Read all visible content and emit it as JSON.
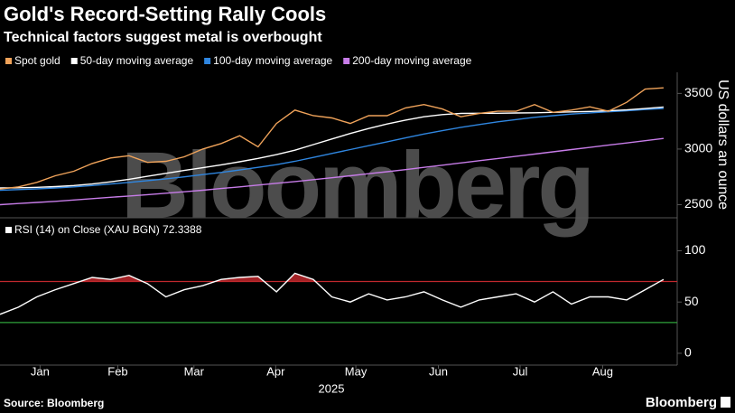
{
  "chart_data": [
    {
      "type": "line",
      "title": "Gold's Record-Setting Rally Cools",
      "subtitle": "Technical factors suggest metal is overbought",
      "watermark": "Bloomberg",
      "y_axis_label": "US dollars an ounce",
      "x": [
        0,
        0.23,
        0.46,
        0.69,
        0.92,
        1.15,
        1.38,
        1.61,
        1.84,
        2.07,
        2.3,
        2.53,
        2.76,
        2.99,
        3.22,
        3.45,
        3.68,
        3.91,
        4.14,
        4.37,
        4.6,
        4.83,
        5.06,
        5.29,
        5.52,
        5.75,
        5.98,
        6.21,
        6.44,
        6.67,
        6.9,
        7.13,
        7.36,
        7.59,
        7.82,
        8.05,
        8.28
      ],
      "xlim": [
        0,
        8.45
      ],
      "ylim": [
        2390,
        3690
      ],
      "yticks": [
        2500,
        3000,
        3500
      ],
      "series": [
        {
          "name": "Spot gold",
          "color": "#f0a35a",
          "values": [
            2640,
            2660,
            2700,
            2760,
            2800,
            2870,
            2920,
            2940,
            2880,
            2890,
            2930,
            3000,
            3050,
            3120,
            3020,
            3230,
            3350,
            3300,
            3280,
            3230,
            3300,
            3300,
            3370,
            3400,
            3360,
            3290,
            3320,
            3340,
            3340,
            3400,
            3330,
            3350,
            3380,
            3340,
            3420,
            3540,
            3550
          ]
        },
        {
          "name": "50-day moving average",
          "color": "#ffffff",
          "values": [
            2650,
            2652,
            2656,
            2662,
            2672,
            2686,
            2705,
            2728,
            2755,
            2782,
            2808,
            2832,
            2858,
            2886,
            2916,
            2950,
            2990,
            3040,
            3090,
            3140,
            3185,
            3225,
            3260,
            3290,
            3310,
            3320,
            3322,
            3322,
            3324,
            3326,
            3330,
            3334,
            3338,
            3344,
            3352,
            3364,
            3378
          ]
        },
        {
          "name": "100-day moving average",
          "color": "#2f86e0",
          "values": [
            2630,
            2635,
            2642,
            2650,
            2660,
            2672,
            2686,
            2700,
            2716,
            2732,
            2750,
            2770,
            2790,
            2812,
            2835,
            2860,
            2890,
            2925,
            2960,
            2995,
            3030,
            3065,
            3100,
            3135,
            3165,
            3195,
            3220,
            3245,
            3265,
            3285,
            3300,
            3315,
            3325,
            3335,
            3345,
            3355,
            3365
          ]
        },
        {
          "name": "200-day moving average",
          "color": "#c77ce8",
          "values": [
            2500,
            2510,
            2520,
            2530,
            2542,
            2554,
            2566,
            2578,
            2590,
            2603,
            2616,
            2630,
            2645,
            2660,
            2676,
            2692,
            2708,
            2725,
            2742,
            2760,
            2778,
            2796,
            2815,
            2835,
            2855,
            2875,
            2895,
            2915,
            2935,
            2955,
            2975,
            2995,
            3015,
            3035,
            3055,
            3075,
            3095
          ]
        }
      ]
    },
    {
      "type": "line",
      "ylim": [
        -8,
        111
      ],
      "yticks": [
        0,
        50,
        100
      ],
      "xticks": [
        {
          "value": 0.5,
          "label": "Jan"
        },
        {
          "value": 1.47,
          "label": "Feb"
        },
        {
          "value": 2.42,
          "label": "Mar"
        },
        {
          "value": 3.44,
          "label": "Apr"
        },
        {
          "value": 4.44,
          "label": "May"
        },
        {
          "value": 5.47,
          "label": "Jun"
        },
        {
          "value": 6.49,
          "label": "Jul"
        },
        {
          "value": 7.52,
          "label": "Aug"
        }
      ],
      "x_axis_label": "2025",
      "thresholds": [
        {
          "value": 70,
          "color": "#c0282d"
        },
        {
          "value": 30,
          "color": "#2fa33a"
        }
      ],
      "series": [
        {
          "name": "RSI (14)  on Close (XAU BGN) 72.3388",
          "color": "#ffffff",
          "values": [
            38,
            45,
            55,
            62,
            68,
            74,
            72,
            76,
            68,
            55,
            62,
            66,
            72,
            74,
            75,
            60,
            78,
            72,
            55,
            50,
            58,
            52,
            55,
            60,
            52,
            45,
            52,
            55,
            58,
            50,
            60,
            48,
            55,
            55,
            52,
            62,
            72
          ]
        }
      ]
    }
  ],
  "footer": {
    "source": "Source: Bloomberg",
    "logo": "Bloomberg"
  }
}
